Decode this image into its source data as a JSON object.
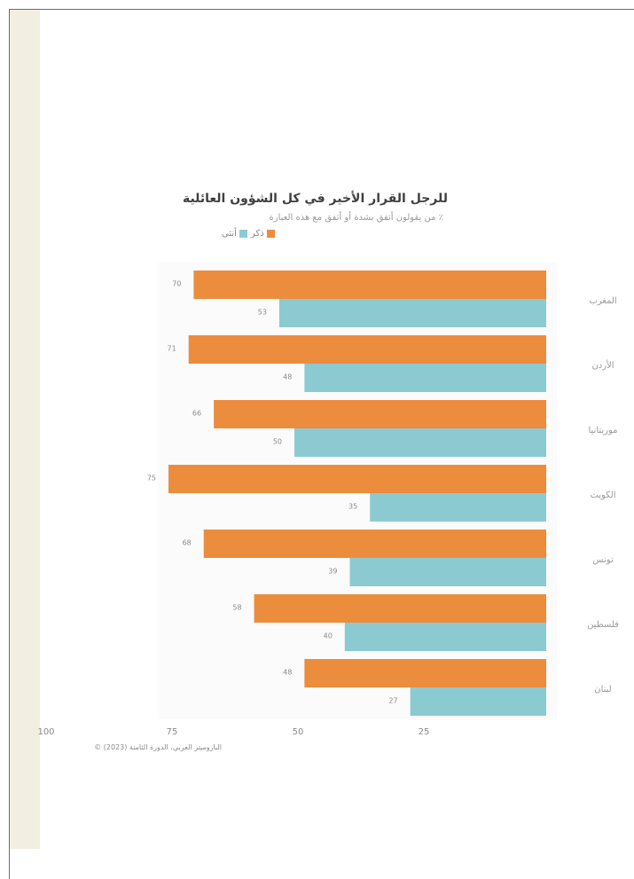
{
  "chart_data": {
    "type": "bar",
    "orientation": "horizontal",
    "title": "للرجل القرار الأخير في كل الشؤون العائلية",
    "subtitle": "٪ من يقولون أتفق بشدة أو أتفق مع هذه العبارة",
    "categories": [
      "المغرب",
      "الأردن",
      "موريتانيا",
      "الكويت",
      "تونس",
      "فلسطين",
      "لبنان"
    ],
    "series": [
      {
        "name": "ذكر",
        "color": "#ec8c3d",
        "values": [
          70,
          71,
          66,
          75,
          68,
          58,
          48
        ]
      },
      {
        "name": "أنثى",
        "color": "#8ccad2",
        "values": [
          53,
          48,
          50,
          35,
          39,
          40,
          27
        ]
      }
    ],
    "xlim": [
      0,
      100
    ],
    "x_reversed": true,
    "xticks": [
      "100",
      "75",
      "50",
      "25"
    ],
    "xtick_values": [
      100,
      75,
      50,
      25
    ],
    "grid": false,
    "legend_position": "top"
  },
  "source": "الباروميتر العربي، الدورة الثامنة (2023) ©"
}
